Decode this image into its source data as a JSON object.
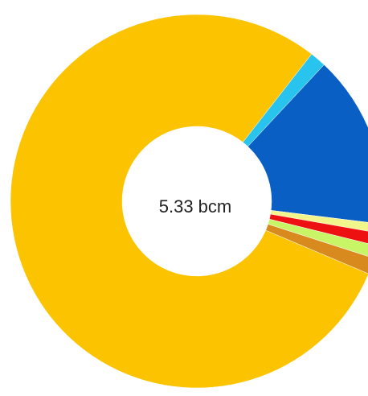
{
  "chart_data": {
    "type": "donut",
    "center_label": "5.33 bcm",
    "categories": [
      null,
      null,
      null,
      null,
      null,
      null,
      null
    ],
    "values": [
      1.4,
      15,
      0.8,
      1.1,
      1.1,
      1.4,
      79.2
    ],
    "colors": [
      "#29c4ee",
      "#0a5fc4",
      "#f2f58a",
      "#ee1111",
      "#c8f565",
      "#d98a1f",
      "#fbc300"
    ]
  }
}
